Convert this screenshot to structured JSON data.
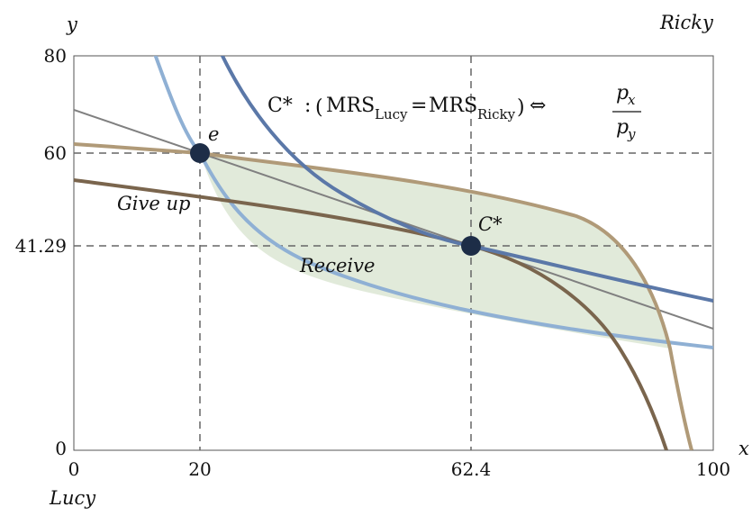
{
  "labels": {
    "y_axis": "y",
    "x_axis": "x",
    "lucy": "Lucy",
    "ricky": "Ricky",
    "give_up": "Give up",
    "receive": "Receive"
  },
  "points": {
    "endowment": {
      "label": "e",
      "x": 20,
      "y": 60
    },
    "equilibrium": {
      "label": "C*",
      "x": 62.4,
      "y": 41.29
    }
  },
  "equation": {
    "lhs": "C*",
    "colon": ":",
    "lparen": "(",
    "mrs1": "MRS",
    "sub1": "Lucy",
    "equals": "=",
    "mrs2": "MRS",
    "sub2": "Ricky",
    "rparen": ")",
    "iff": "⇔",
    "num": "p",
    "num_sub": "x",
    "den": "p",
    "den_sub": "y"
  },
  "axes": {
    "x_ticks": [
      "0",
      "20",
      "62.4",
      "100"
    ],
    "y_ticks": [
      "0",
      "41.29",
      "60",
      "80"
    ]
  },
  "colors": {
    "lucy_curve": "#8fb0d4",
    "ricky_curve": "#b09a78",
    "contract_curve": "#5b78a8",
    "ricky_through_c": "#7a654d",
    "lens_fill": "#e1eada",
    "budget_line": "#808080",
    "point": "#1d2d47"
  }
}
